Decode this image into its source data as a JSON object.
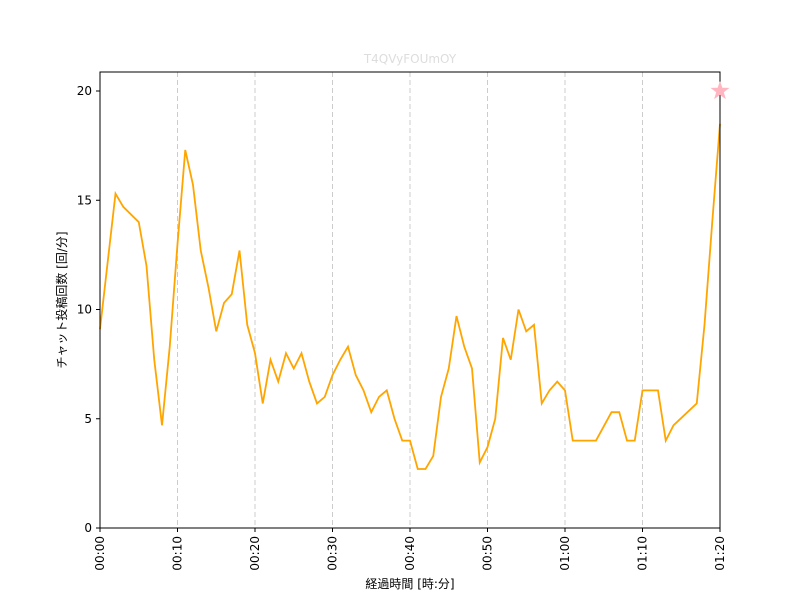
{
  "chart_data": {
    "type": "line",
    "title": "T4QVyFOUmOY",
    "xlabel": "経過時間 [時:分]",
    "ylabel": "チャット投稿回数 [回/分]",
    "x": [
      0,
      2,
      3,
      5,
      6,
      7,
      8,
      9,
      10,
      11,
      12,
      13,
      14,
      15,
      16,
      17,
      18,
      19,
      20,
      21,
      22,
      23,
      24,
      25,
      26,
      27,
      28,
      29,
      30,
      31,
      32,
      33,
      34,
      35,
      36,
      37,
      38,
      39,
      40,
      41,
      42,
      43,
      44,
      45,
      46,
      47,
      48,
      49,
      50,
      51,
      52,
      53,
      54,
      55,
      56,
      57,
      58,
      59,
      60,
      61,
      64,
      66,
      67,
      68,
      69,
      70,
      72,
      73,
      74,
      77,
      78,
      79,
      80
    ],
    "series": [
      {
        "color": "#ffa500",
        "values": [
          9.1,
          15.3,
          14.7,
          14.0,
          12.0,
          7.7,
          4.7,
          8.3,
          13.0,
          17.3,
          15.7,
          12.7,
          11.0,
          9.0,
          10.3,
          10.7,
          12.7,
          9.3,
          8.0,
          5.7,
          7.7,
          6.7,
          8.0,
          7.3,
          8.0,
          6.7,
          5.7,
          6.0,
          7.0,
          7.7,
          8.3,
          7.0,
          6.3,
          5.3,
          6.0,
          6.3,
          5.0,
          4.0,
          4.0,
          2.7,
          2.7,
          3.3,
          6.0,
          7.3,
          9.7,
          8.3,
          7.3,
          3.0,
          3.7,
          5.0,
          8.7,
          7.7,
          10.0,
          9.0,
          9.3,
          5.7,
          6.3,
          6.7,
          6.3,
          4.0,
          4.0,
          5.3,
          5.3,
          4.0,
          4.0,
          6.3,
          6.3,
          4.0,
          4.7,
          5.7,
          9.3,
          14.0,
          18.5
        ]
      }
    ],
    "marker": {
      "x": 80,
      "y": 20,
      "color": "#ffb6c1"
    },
    "xlim": [
      0,
      80
    ],
    "ylim": [
      0,
      20.87
    ],
    "xticks": [
      {
        "value": 0,
        "label": "00:00"
      },
      {
        "value": 10,
        "label": "00:10"
      },
      {
        "value": 20,
        "label": "00:20"
      },
      {
        "value": 30,
        "label": "00:30"
      },
      {
        "value": 40,
        "label": "00:40"
      },
      {
        "value": 50,
        "label": "00:50"
      },
      {
        "value": 60,
        "label": "01:00"
      },
      {
        "value": 70,
        "label": "01:10"
      },
      {
        "value": 80,
        "label": "01:20"
      }
    ],
    "yticks": [
      0,
      5,
      10,
      15,
      20
    ],
    "grid": "x"
  }
}
